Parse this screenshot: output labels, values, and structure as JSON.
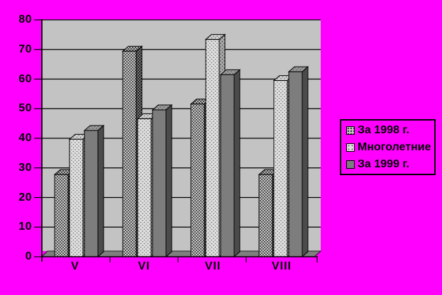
{
  "chart_data": {
    "type": "bar",
    "style": "3d-clustered-column",
    "title": "",
    "categories": [
      "V",
      "VI",
      "VII",
      "VIII"
    ],
    "series": [
      {
        "name": "За 1998 г.",
        "values": [
          28,
          70,
          52,
          28
        ]
      },
      {
        "name": "Многолетние",
        "values": [
          40,
          47,
          74,
          60
        ]
      },
      {
        "name": "За 1999 г.",
        "values": [
          43,
          50,
          62,
          63
        ]
      }
    ],
    "ylim": [
      0,
      80
    ],
    "ytick_step": 10,
    "yticks": [
      "0",
      "10",
      "20",
      "30",
      "40",
      "50",
      "60",
      "70",
      "80"
    ],
    "grid": true,
    "legend_position": "right",
    "colors": {
      "background": "#FF00FF",
      "plot_wall": "#c3c3c3",
      "floor": "#7e7e7e",
      "series_1998_front": "#c8c8c8",
      "series_mnogoletnie_front": "#e0e0e0",
      "series_1999_front": "#7d7d7d",
      "line": "#000000"
    }
  }
}
